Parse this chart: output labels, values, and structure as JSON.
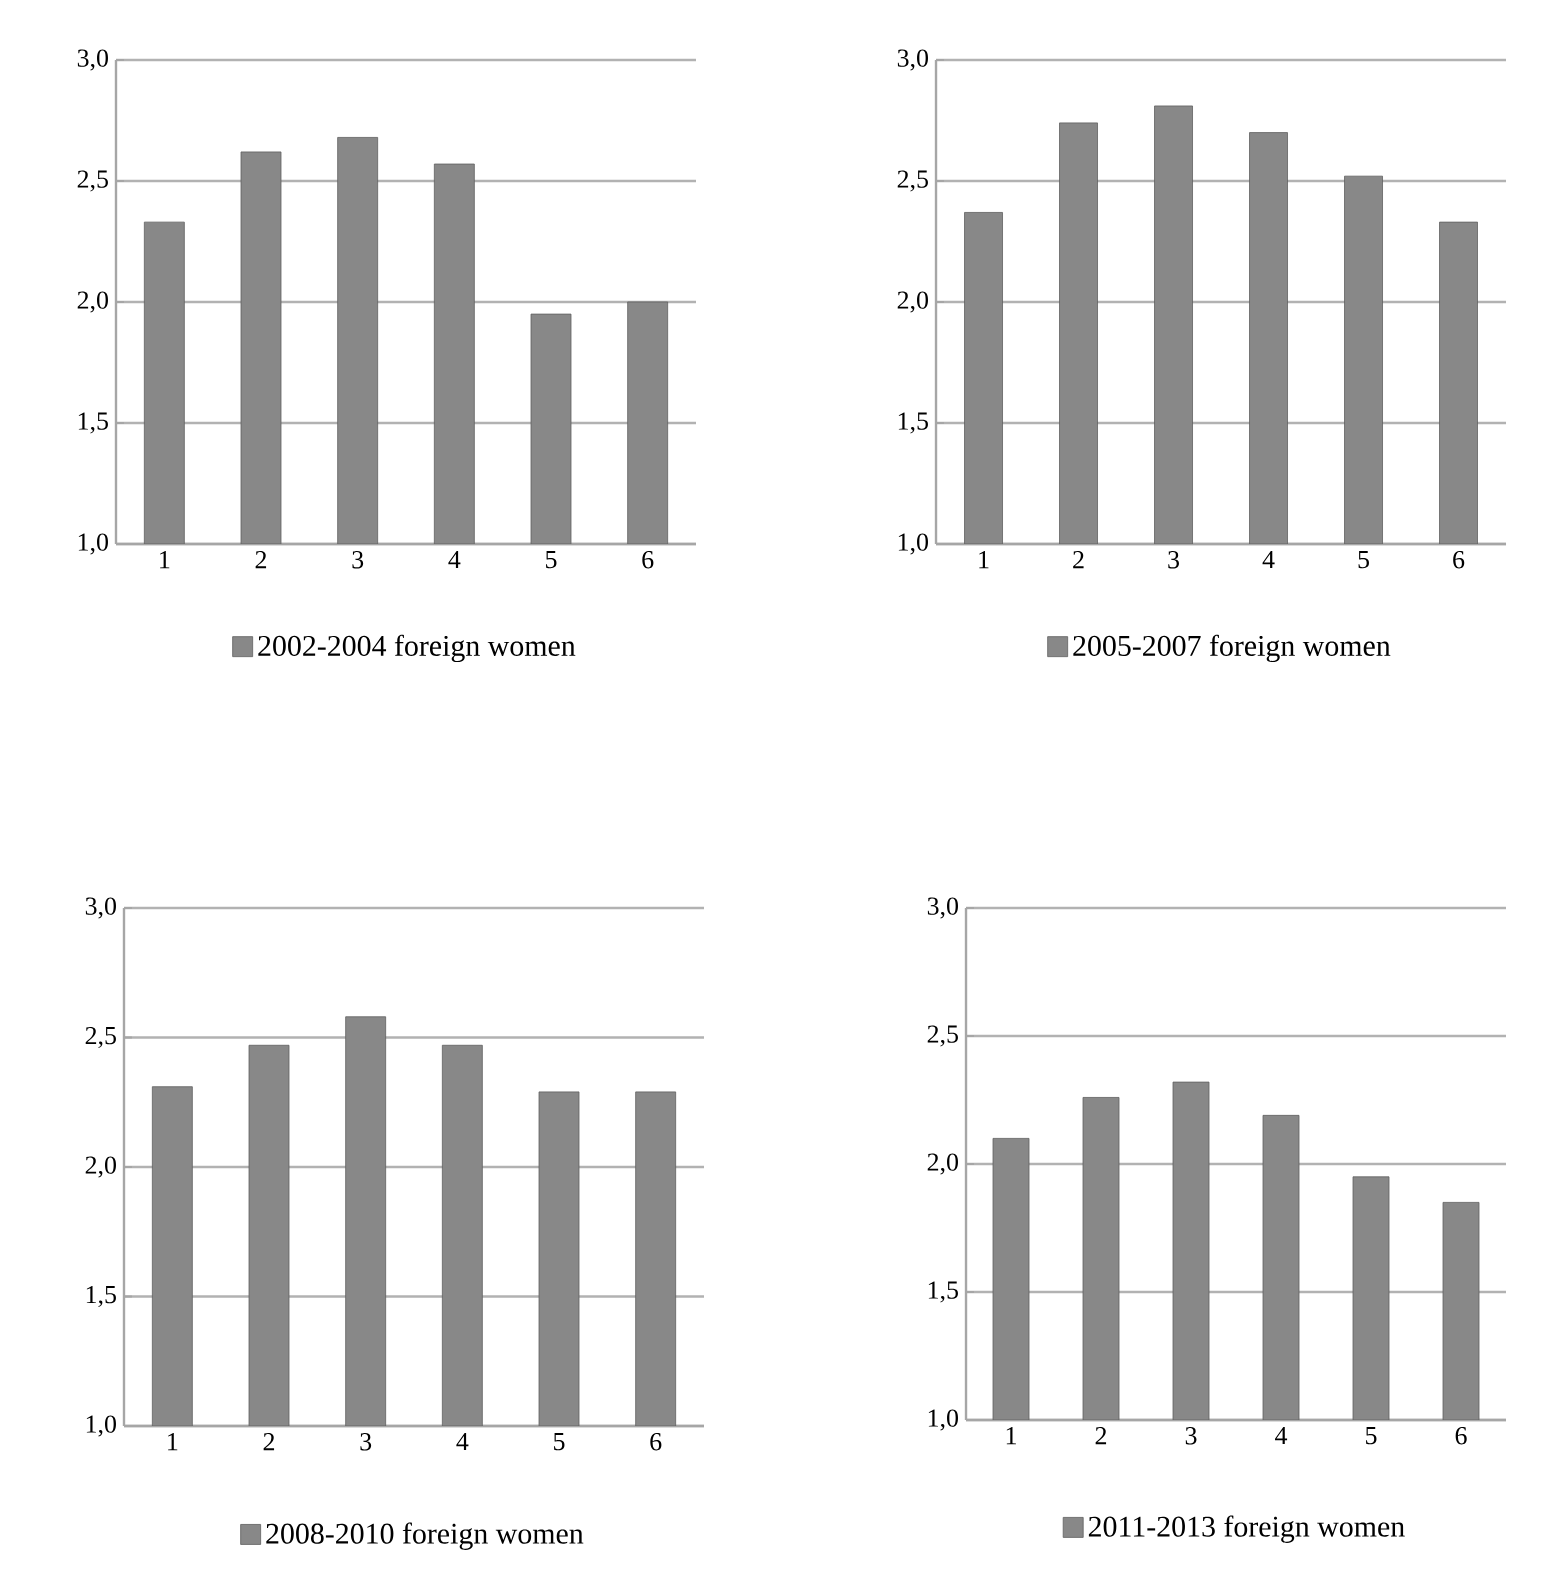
{
  "chart_data": [
    {
      "type": "bar",
      "categories": [
        "1",
        "2",
        "3",
        "4",
        "5",
        "6"
      ],
      "series": [
        {
          "name": "2002-2004 foreign women",
          "color": "#888888",
          "values": [
            2.33,
            2.62,
            2.68,
            2.57,
            1.95,
            2.0
          ]
        }
      ],
      "ylim": [
        1,
        3
      ],
      "yticks": [
        {
          "value": 1,
          "label": "1,0"
        },
        {
          "value": 1.5,
          "label": "1,5"
        },
        {
          "value": 2,
          "label": "2,0"
        },
        {
          "value": 2.5,
          "label": "2,5"
        },
        {
          "value": 3,
          "label": "3,0"
        }
      ],
      "grid": "y",
      "legend": "bottom"
    },
    {
      "type": "bar",
      "categories": [
        "1",
        "2",
        "3",
        "4",
        "5",
        "6"
      ],
      "series": [
        {
          "name": "2005-2007 foreign women",
          "color": "#888888",
          "values": [
            2.37,
            2.74,
            2.81,
            2.7,
            2.52,
            2.33
          ]
        }
      ],
      "ylim": [
        1,
        3
      ],
      "yticks": [
        {
          "value": 1,
          "label": "1,0"
        },
        {
          "value": 1.5,
          "label": "1,5"
        },
        {
          "value": 2,
          "label": "2,0"
        },
        {
          "value": 2.5,
          "label": "2,5"
        },
        {
          "value": 3,
          "label": "3,0"
        }
      ],
      "grid": "y",
      "legend": "bottom"
    },
    {
      "type": "bar",
      "categories": [
        "1",
        "2",
        "3",
        "4",
        "5",
        "6"
      ],
      "series": [
        {
          "name": "2008-2010 foreign women",
          "color": "#888888",
          "values": [
            2.31,
            2.47,
            2.58,
            2.47,
            2.29,
            2.29
          ]
        }
      ],
      "ylim": [
        1,
        3
      ],
      "yticks": [
        {
          "value": 1,
          "label": "1,0"
        },
        {
          "value": 1.5,
          "label": "1,5"
        },
        {
          "value": 2,
          "label": "2,0"
        },
        {
          "value": 2.5,
          "label": "2,5"
        },
        {
          "value": 3,
          "label": "3,0"
        }
      ],
      "grid": "y",
      "legend": "bottom"
    },
    {
      "type": "bar",
      "categories": [
        "1",
        "2",
        "3",
        "4",
        "5",
        "6"
      ],
      "series": [
        {
          "name": "2011-2013 foreign women",
          "color": "#888888",
          "values": [
            2.1,
            2.26,
            2.32,
            2.19,
            1.95,
            1.85
          ]
        }
      ],
      "ylim": [
        1,
        3
      ],
      "yticks": [
        {
          "value": 1,
          "label": "1,0"
        },
        {
          "value": 1.5,
          "label": "1,5"
        },
        {
          "value": 2,
          "label": "2,0"
        },
        {
          "value": 2.5,
          "label": "2,5"
        },
        {
          "value": 3,
          "label": "3,0"
        }
      ],
      "grid": "y",
      "legend": "bottom"
    }
  ]
}
